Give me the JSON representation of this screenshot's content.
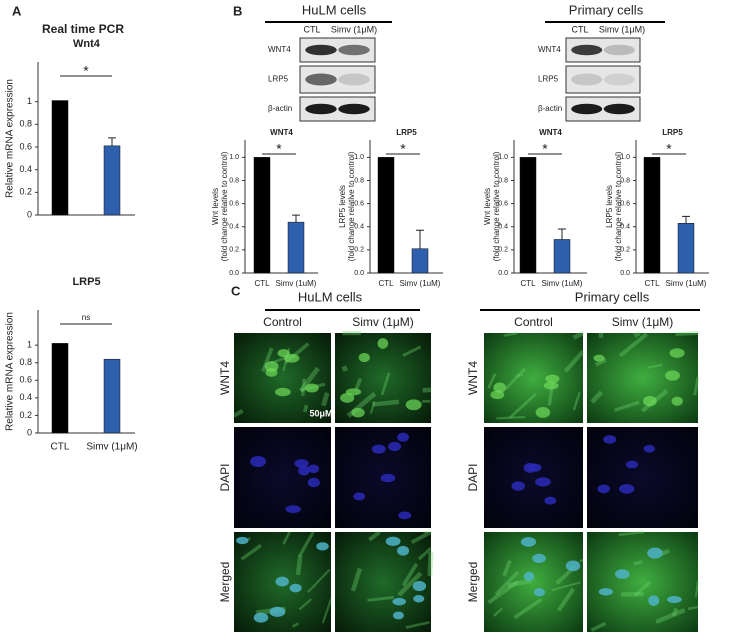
{
  "panels": {
    "a": {
      "label": "A",
      "heading": "Real time PCR"
    },
    "b": {
      "label": "B",
      "blots": [
        {
          "title": "HuLM cells",
          "lanes": [
            "CTL",
            "Simv (1μM)"
          ],
          "rows": [
            "WNT4",
            "LRP5",
            "β-actin"
          ]
        },
        {
          "title": "Primary cells",
          "lanes": [
            "CTL",
            "Simv (1μM)"
          ],
          "rows": [
            "WNT4",
            "LRP5",
            "β-actin"
          ]
        }
      ]
    },
    "c": {
      "label": "C",
      "groups": [
        {
          "title": "HuLM cells",
          "columns": [
            "Control",
            "Simv (1μM)"
          ],
          "rows": [
            "WNT4",
            "DAPI",
            "Merged"
          ],
          "scale_bar": "50μM"
        },
        {
          "title": "Primary cells",
          "columns": [
            "Control",
            "Simv (1μM)"
          ],
          "rows": [
            "WNT4",
            "DAPI",
            "Merged"
          ]
        }
      ]
    }
  },
  "chart_data": [
    {
      "type": "bar",
      "title": "Wnt4",
      "ylabel": [
        "Relative mRNA expression"
      ],
      "categories": [
        null,
        null
      ],
      "values": [
        1.01,
        0.61
      ],
      "errors": [
        null,
        0.07
      ],
      "colors": [
        "#000000",
        "#2e5fad"
      ],
      "annotation": "*",
      "ylim": [
        0,
        1.35
      ],
      "yticks": [
        0,
        0.2,
        0.4,
        0.6,
        0.8,
        1
      ]
    },
    {
      "type": "bar",
      "title": "LRP5",
      "ylabel": [
        "Relative mRNA expression"
      ],
      "categories": [
        "CTL",
        "Simv (1μM)"
      ],
      "values": [
        1.02,
        0.84
      ],
      "errors": [
        null,
        null
      ],
      "colors": [
        "#000000",
        "#2e5fad"
      ],
      "annotation": "ns",
      "ylim": [
        0,
        1.4
      ],
      "yticks": [
        0,
        0.2,
        0.4,
        0.6,
        0.8,
        1
      ]
    },
    {
      "type": "bar",
      "title": "WNT4",
      "ylabel": [
        "Wnt levels",
        "(fold change relative to control)"
      ],
      "categories": [
        "CTL",
        "Simv (1uM)"
      ],
      "values": [
        1.0,
        0.44
      ],
      "errors": [
        null,
        0.06
      ],
      "colors": [
        "#000000",
        "#2e5fad"
      ],
      "annotation": "*",
      "ylim": [
        0,
        1.15
      ],
      "yticks": [
        {
          "value": 0,
          "label": "0.0"
        },
        0.2,
        0.4,
        0.6,
        0.8,
        {
          "value": 1,
          "label": "1.0"
        }
      ]
    },
    {
      "type": "bar",
      "title": "LRP5",
      "ylabel": [
        "LRP5 levels",
        "(fold change relative to control)"
      ],
      "categories": [
        "CTL",
        "Simv (1uM)"
      ],
      "values": [
        1.0,
        0.21
      ],
      "errors": [
        null,
        0.16
      ],
      "colors": [
        "#000000",
        "#2e5fad"
      ],
      "annotation": "*",
      "ylim": [
        0,
        1.15
      ],
      "yticks": [
        {
          "value": 0,
          "label": "0.0"
        },
        0.2,
        0.4,
        0.6,
        0.8,
        {
          "value": 1,
          "label": "1.0"
        }
      ]
    },
    {
      "type": "bar",
      "title": "WNT4",
      "ylabel": [
        "Wnt levels",
        "(fold change relative to control)"
      ],
      "categories": [
        "CTL",
        "Simv (1uM)"
      ],
      "values": [
        1.0,
        0.29
      ],
      "errors": [
        null,
        0.09
      ],
      "colors": [
        "#000000",
        "#2e5fad"
      ],
      "annotation": "*",
      "ylim": [
        0,
        1.15
      ],
      "yticks": [
        {
          "value": 0,
          "label": "0.0"
        },
        0.2,
        0.4,
        0.6,
        0.8,
        {
          "value": 1,
          "label": "1.0"
        }
      ]
    },
    {
      "type": "bar",
      "title": "LRP5",
      "ylabel": [
        "LRP5 levels",
        "(fold change relative to control)"
      ],
      "categories": [
        "CTL",
        "Simv (1uM)"
      ],
      "values": [
        1.0,
        0.43
      ],
      "errors": [
        null,
        0.06
      ],
      "colors": [
        "#000000",
        "#2e5fad"
      ],
      "annotation": "*",
      "ylim": [
        0,
        1.15
      ],
      "yticks": [
        {
          "value": 0,
          "label": "0.0"
        },
        0.2,
        0.4,
        0.6,
        0.8,
        {
          "value": 1,
          "label": "1.0"
        }
      ]
    }
  ]
}
